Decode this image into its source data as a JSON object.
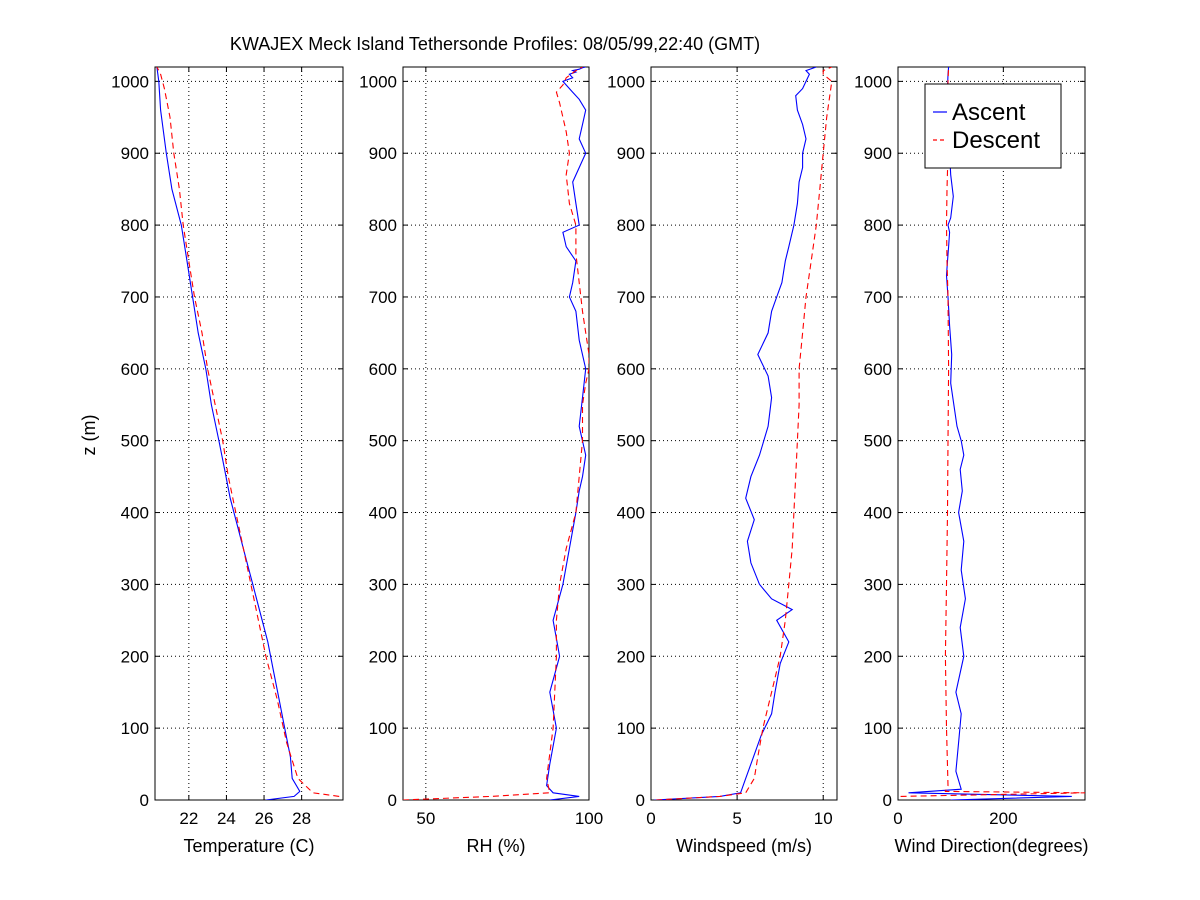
{
  "chart_data": {
    "title": "KWAJEX Meck Island Tethersonde Profiles: 08/05/99,22:40 (GMT)",
    "ylabel": "z (m)",
    "ylim": [
      0,
      1020
    ],
    "yticks": [
      0,
      100,
      200,
      300,
      400,
      500,
      600,
      700,
      800,
      900,
      1000
    ],
    "grid": true,
    "legend": {
      "placement": "top-right of last panel",
      "entries": [
        {
          "label": "Ascent",
          "color": "#0000ff",
          "style": "solid"
        },
        {
          "label": "Descent",
          "color": "#ff0000",
          "style": "dashed"
        }
      ]
    },
    "panels": [
      {
        "type": "line",
        "xlabel": "Temperature (C)",
        "xlim": [
          20.2,
          30.2
        ],
        "xticks": [
          22,
          24,
          26,
          28
        ],
        "series": [
          {
            "name": "Ascent",
            "color": "#0000ff",
            "dash": "none",
            "x": [
              26.1,
              27.6,
              27.9,
              27.5,
              27.4,
              27.1,
              26.8,
              26.5,
              26.2,
              25.8,
              25.4,
              25.0,
              24.6,
              24.2,
              23.9,
              23.6,
              23.2,
              22.9,
              22.5,
              22.2,
              21.9,
              21.6,
              21.1,
              20.8,
              20.5,
              20.4,
              20.3
            ],
            "y": [
              0,
              5,
              12,
              30,
              60,
              100,
              140,
              180,
              220,
              260,
              300,
              340,
              380,
              420,
              460,
              500,
              550,
              600,
              650,
              700,
              750,
              800,
              850,
              900,
              960,
              1000,
              1020
            ]
          },
          {
            "name": "Descent",
            "color": "#ff0000",
            "dash": "dashed",
            "x": [
              30.0,
              28.6,
              27.8,
              27.2,
              26.7,
              26.1,
              25.7,
              25.3,
              24.9,
              24.5,
              24.1,
              23.8,
              23.4,
              23.0,
              22.7,
              22.3,
              22.0,
              21.7,
              21.5,
              21.2,
              21.0,
              20.7,
              20.5,
              20.3
            ],
            "y": [
              5,
              10,
              30,
              80,
              140,
              200,
              250,
              300,
              350,
              400,
              450,
              500,
              550,
              600,
              650,
              700,
              750,
              800,
              850,
              900,
              950,
              990,
              1010,
              1020
            ]
          }
        ]
      },
      {
        "type": "line",
        "xlabel": "RH (%)",
        "xlim": [
          43,
          100
        ],
        "xticks": [
          50,
          100
        ],
        "series": [
          {
            "name": "Ascent",
            "color": "#0000ff",
            "dash": "none",
            "x": [
              88,
              97,
              89,
              87,
              88,
              90,
              88,
              91,
              89,
              92,
              94,
              96,
              97,
              98,
              99,
              97,
              98,
              99,
              97,
              96,
              94,
              95,
              96,
              93,
              92,
              97,
              96,
              95,
              97,
              99,
              97,
              98,
              99,
              97,
              95,
              93,
              92,
              95,
              94,
              96,
              95,
              97,
              98,
              99
            ],
            "y": [
              0,
              5,
              10,
              20,
              50,
              100,
              150,
              200,
              250,
              300,
              350,
              400,
              430,
              450,
              480,
              520,
              560,
              600,
              640,
              680,
              700,
              720,
              750,
              770,
              790,
              800,
              830,
              860,
              880,
              900,
              920,
              940,
              960,
              975,
              985,
              995,
              1000,
              1005,
              1010,
              1013,
              1015,
              1017,
              1019,
              1020
            ]
          },
          {
            "name": "Descent",
            "color": "#ff0000",
            "dash": "dashed",
            "x": [
              43,
              70,
              88,
              87,
              89,
              90,
              90,
              91,
              93,
              96,
              97,
              98,
              98,
              99,
              100,
              100,
              98,
              97,
              96,
              96,
              94,
              93,
              94,
              93,
              92,
              91,
              90,
              92,
              93,
              96,
              98
            ],
            "y": [
              0,
              5,
              10,
              30,
              100,
              200,
              250,
              300,
              350,
              400,
              450,
              500,
              550,
              580,
              600,
              620,
              680,
              720,
              760,
              800,
              830,
              870,
              900,
              930,
              950,
              970,
              985,
              995,
              1005,
              1015,
              1020
            ]
          }
        ]
      },
      {
        "type": "line",
        "xlabel": "Windspeed (m/s)",
        "xlim": [
          0,
          10.8
        ],
        "xticks": [
          0,
          5,
          10
        ],
        "series": [
          {
            "name": "Ascent",
            "color": "#0000ff",
            "dash": "none",
            "x": [
              0.2,
              4.0,
              5.2,
              5.5,
              5.8,
              6.4,
              7.0,
              7.2,
              7.5,
              8.0,
              7.3,
              8.2,
              7.0,
              6.3,
              5.8,
              5.6,
              6.0,
              5.5,
              5.8,
              6.3,
              6.8,
              7.0,
              6.8,
              6.4,
              6.2,
              6.8,
              7.0,
              7.3,
              7.6,
              7.8,
              8.0,
              8.3,
              8.5,
              8.6,
              8.8,
              8.8,
              9.0,
              8.8,
              8.5,
              8.4,
              8.8,
              9.0,
              9.2,
              9.0,
              9.6
            ],
            "y": [
              0,
              5,
              10,
              30,
              50,
              90,
              120,
              150,
              190,
              220,
              250,
              265,
              280,
              300,
              330,
              360,
              390,
              420,
              450,
              480,
              520,
              560,
              590,
              610,
              620,
              650,
              680,
              700,
              720,
              750,
              770,
              800,
              830,
              860,
              880,
              900,
              920,
              940,
              960,
              980,
              990,
              1000,
              1010,
              1015,
              1020
            ]
          },
          {
            "name": "Descent",
            "color": "#ff0000",
            "dash": "dashed",
            "x": [
              0.3,
              4.0,
              5.5,
              6.0,
              6.2,
              6.5,
              7.0,
              7.5,
              7.8,
              8.0,
              8.2,
              8.3,
              8.4,
              8.5,
              8.6,
              8.6,
              8.8,
              9.0,
              9.3,
              9.6,
              9.8,
              10.0,
              10.2,
              10.5,
              10.0,
              10.0,
              10.5
            ],
            "y": [
              0,
              5,
              10,
              30,
              60,
              100,
              150,
              200,
              250,
              300,
              350,
              400,
              450,
              500,
              550,
              600,
              650,
              700,
              750,
              800,
              850,
              900,
              950,
              1000,
              1010,
              1015,
              1020
            ]
          }
        ]
      },
      {
        "type": "line",
        "xlabel": "Wind Direction(degrees)",
        "xlim": [
          0,
          355
        ],
        "xticks": [
          0,
          200
        ],
        "series": [
          {
            "name": "Ascent",
            "color": "#0000ff",
            "dash": "none",
            "x": [
              100,
              330,
              20,
              120,
              110,
              115,
              120,
              110,
              125,
              118,
              128,
              120,
              125,
              115,
              122,
              118,
              125,
              120,
              112,
              108,
              100,
              102,
              98,
              95,
              92,
              94,
              96,
              98,
              95,
              100,
              105,
              100,
              98,
              95,
              93,
              94,
              95,
              96
            ],
            "y": [
              0,
              5,
              10,
              15,
              40,
              80,
              120,
              150,
              200,
              240,
              280,
              320,
              360,
              400,
              430,
              460,
              480,
              500,
              520,
              540,
              580,
              620,
              660,
              700,
              730,
              750,
              770,
              790,
              800,
              810,
              840,
              870,
              900,
              930,
              960,
              990,
              1010,
              1020
            ]
          },
          {
            "name": "Descent",
            "color": "#ff0000",
            "dash": "dashed",
            "x": [
              5,
              355,
              90,
              95,
              92,
              90,
              92,
              94,
              95,
              96,
              95,
              93,
              92,
              93,
              95,
              94,
              95,
              96
            ],
            "y": [
              5,
              10,
              12,
              20,
              100,
              200,
              300,
              400,
              500,
              600,
              700,
              750,
              800,
              850,
              900,
              950,
              1000,
              1020
            ]
          }
        ]
      }
    ]
  }
}
